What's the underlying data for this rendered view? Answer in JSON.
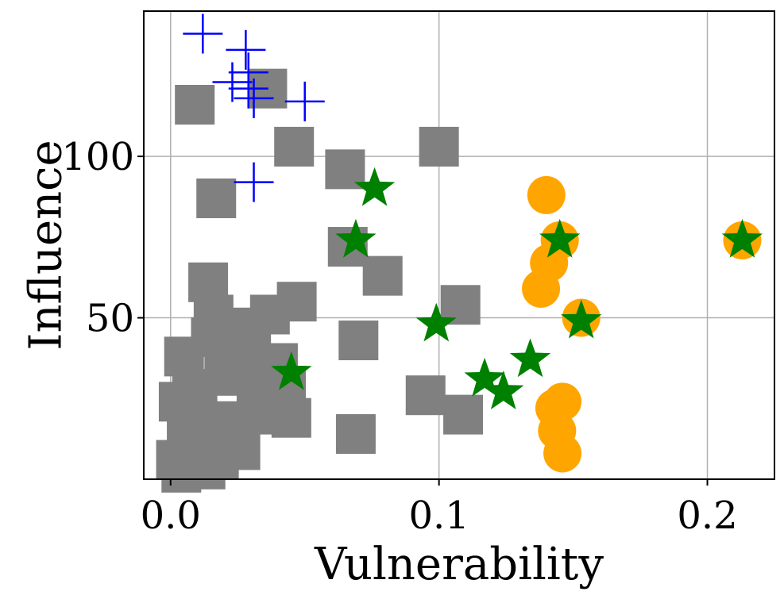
{
  "chart_data": {
    "type": "scatter",
    "title": "",
    "xlabel": "Vulnerability",
    "ylabel": "Influence",
    "xlim": [
      -0.01,
      0.225
    ],
    "ylim": [
      0,
      145
    ],
    "xticks": [
      0.0,
      0.1,
      0.2
    ],
    "xtick_labels": [
      "0.0",
      "0.1",
      "0.2"
    ],
    "yticks": [
      50,
      100
    ],
    "ytick_labels": [
      "50",
      "100"
    ],
    "grid": true,
    "colors": {
      "gray": "#808080",
      "orange": "#FFA500",
      "green": "#008000",
      "blue": "#0000FF"
    },
    "series": [
      {
        "name": "gray-squares",
        "marker": "square",
        "color": "#808080",
        "points": [
          [
            0.009,
            116
          ],
          [
            0.036,
            121
          ],
          [
            0.017,
            87
          ],
          [
            0.046,
            103
          ],
          [
            0.065,
            96
          ],
          [
            0.1,
            103
          ],
          [
            0.066,
            72
          ],
          [
            0.079,
            63
          ],
          [
            0.108,
            54
          ],
          [
            0.014,
            61
          ],
          [
            0.047,
            55
          ],
          [
            0.016,
            51
          ],
          [
            0.037,
            51
          ],
          [
            0.03,
            47
          ],
          [
            0.07,
            43
          ],
          [
            0.015,
            44
          ],
          [
            0.005,
            38
          ],
          [
            0.026,
            40
          ],
          [
            0.04,
            36
          ],
          [
            0.008,
            28
          ],
          [
            0.02,
            32
          ],
          [
            0.032,
            30
          ],
          [
            0.043,
            29
          ],
          [
            0.003,
            24
          ],
          [
            0.01,
            20
          ],
          [
            0.022,
            18
          ],
          [
            0.035,
            20
          ],
          [
            0.045,
            19
          ],
          [
            0.095,
            26
          ],
          [
            0.109,
            20
          ],
          [
            0.069,
            14
          ],
          [
            0.006,
            12
          ],
          [
            0.015,
            10
          ],
          [
            0.026,
            9
          ],
          [
            0.002,
            6
          ],
          [
            0.01,
            4
          ],
          [
            0.018,
            6
          ],
          [
            0.004,
            2
          ],
          [
            0.013,
            3
          ]
        ]
      },
      {
        "name": "orange-circles",
        "marker": "circle",
        "color": "#FFA500",
        "points": [
          [
            0.14,
            88
          ],
          [
            0.145,
            74
          ],
          [
            0.141,
            67
          ],
          [
            0.138,
            59
          ],
          [
            0.153,
            50
          ],
          [
            0.146,
            24
          ],
          [
            0.143,
            22
          ],
          [
            0.144,
            15
          ],
          [
            0.146,
            8
          ],
          [
            0.213,
            74
          ]
        ]
      },
      {
        "name": "green-stars",
        "marker": "star",
        "color": "#008000",
        "points": [
          [
            0.076,
            90
          ],
          [
            0.069,
            74
          ],
          [
            0.145,
            74
          ],
          [
            0.213,
            74
          ],
          [
            0.099,
            48
          ],
          [
            0.153,
            49
          ],
          [
            0.045,
            33
          ],
          [
            0.117,
            31
          ],
          [
            0.124,
            27
          ],
          [
            0.134,
            37
          ]
        ]
      },
      {
        "name": "blue-plus",
        "marker": "plus",
        "color": "#0000FF",
        "points": [
          [
            0.012,
            138
          ],
          [
            0.028,
            133
          ],
          [
            0.023,
            123
          ],
          [
            0.029,
            126
          ],
          [
            0.029,
            121
          ],
          [
            0.031,
            118
          ],
          [
            0.05,
            117
          ],
          [
            0.031,
            92
          ]
        ]
      }
    ]
  }
}
